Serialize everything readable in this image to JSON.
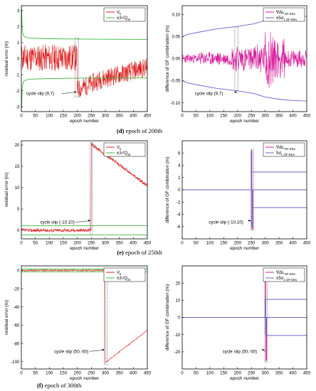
{
  "captions": [
    {
      "letter": "(d)",
      "text": "epoch of 200th"
    },
    {
      "letter": "(e)",
      "text": "epoch of 250th"
    },
    {
      "letter": "(f)",
      "text": "epoch of 300th"
    }
  ],
  "colors": {
    "red": "#dd1f1f",
    "green": "#3cb83c",
    "magenta": "#d81b9b",
    "blue": "#6c63c9",
    "dash": "#555555"
  },
  "chart_data": [
    {
      "id": "d-left",
      "type": "line",
      "xlabel": "epoch number",
      "ylabel": "residual error (m)",
      "xlim": [
        0,
        450
      ],
      "ylim": [
        -3.3,
        3.3
      ],
      "xticks": [
        "0",
        "50",
        "100",
        "150",
        "200",
        "250",
        "300",
        "350",
        "400",
        "450"
      ],
      "yticks": [
        "3",
        "2",
        "1",
        "0",
        "-1",
        "-2",
        "-3"
      ],
      "ytick_values": [
        3,
        2,
        1,
        0,
        -1,
        -2,
        -3
      ],
      "legend": [
        {
          "label": "V_k",
          "color": "red"
        },
        {
          "label": "±3√Q_vk",
          "color": "green"
        }
      ],
      "annotation": "cycle slip (9,7)",
      "slip_epoch": 200,
      "series": [
        {
          "color": "red",
          "kind": "noisy",
          "generator": "d_left_residual"
        },
        {
          "color": "green",
          "kind": "curve",
          "points": [
            [
              1,
              3.1
            ],
            [
              3,
              1.8
            ],
            [
              6,
              1.5
            ],
            [
              12,
              1.35
            ],
            [
              30,
              1.28
            ],
            [
              100,
              1.24
            ],
            [
              200,
              1.22
            ],
            [
              300,
              1.21
            ],
            [
              450,
              1.2
            ]
          ]
        },
        {
          "color": "green",
          "kind": "curve",
          "points": [
            [
              1,
              -3.1
            ],
            [
              3,
              -1.8
            ],
            [
              6,
              -1.5
            ],
            [
              12,
              -1.35
            ],
            [
              30,
              -1.28
            ],
            [
              100,
              -1.24
            ],
            [
              200,
              -1.22
            ],
            [
              300,
              -1.21
            ],
            [
              450,
              -1.2
            ]
          ]
        }
      ],
      "highlight": {
        "x0": 192,
        "x1": 205,
        "y0": -2.4,
        "y1": 1.3
      }
    },
    {
      "id": "d-right",
      "type": "line",
      "xlabel": "epoch number",
      "ylabel": "difference of GF combination (m)",
      "xlim": [
        0,
        450
      ],
      "ylim": [
        -0.12,
        0.12
      ],
      "xticks": [
        "0",
        "50",
        "100",
        "150",
        "200",
        "250",
        "300",
        "350",
        "400",
        "450"
      ],
      "yticks": [
        "0.10",
        "0.05",
        "0.00",
        "-0.05",
        "-0.10"
      ],
      "ytick_values": [
        0.1,
        0.05,
        0,
        -0.05,
        -0.1
      ],
      "legend": [
        {
          "label": "∇ΔL_GF-Elev",
          "color": "magenta"
        },
        {
          "label": "±5σ_L_GF-Elev",
          "color": "blue"
        }
      ],
      "annotation": "cycle slip (9,7)",
      "slip_epoch": 200,
      "series": [
        {
          "color": "magenta",
          "kind": "noisy",
          "generator": "d_right_gf"
        },
        {
          "color": "blue",
          "kind": "curve",
          "points": [
            [
              1,
              0.05
            ],
            [
              20,
              0.055
            ],
            [
              60,
              0.06
            ],
            [
              120,
              0.067
            ],
            [
              200,
              0.073
            ],
            [
              260,
              0.079
            ],
            [
              300,
              0.087
            ],
            [
              350,
              0.092
            ],
            [
              400,
              0.095
            ],
            [
              450,
              0.096
            ]
          ]
        },
        {
          "color": "blue",
          "kind": "curve",
          "points": [
            [
              1,
              -0.05
            ],
            [
              20,
              -0.055
            ],
            [
              60,
              -0.06
            ],
            [
              120,
              -0.067
            ],
            [
              200,
              -0.073
            ],
            [
              260,
              -0.079
            ],
            [
              300,
              -0.087
            ],
            [
              350,
              -0.092
            ],
            [
              400,
              -0.095
            ],
            [
              450,
              -0.096
            ]
          ]
        }
      ],
      "highlight": {
        "x0": 190,
        "x1": 202,
        "y0": -0.072,
        "y1": 0.072
      }
    },
    {
      "id": "e-left",
      "type": "line",
      "xlabel": "epoch number",
      "ylabel": "residual error (m)",
      "xlim": [
        0,
        450
      ],
      "ylim": [
        -2,
        21
      ],
      "xticks": [
        "0",
        "50",
        "100",
        "150",
        "200",
        "250",
        "300",
        "350",
        "400",
        "450"
      ],
      "yticks": [
        "20",
        "15",
        "10",
        "5",
        "0"
      ],
      "ytick_values": [
        20,
        15,
        10,
        5,
        0
      ],
      "legend": [
        {
          "label": "V_k",
          "color": "red"
        },
        {
          "label": "±3√Q_vk",
          "color": "green"
        }
      ],
      "annotation": "cycle slip (-10,10)",
      "slip_epoch": 250,
      "series": [
        {
          "color": "red",
          "kind": "noisy",
          "generator": "e_left_residual"
        },
        {
          "color": "green",
          "kind": "curve",
          "points": [
            [
              1,
              1.1
            ],
            [
              450,
              1.1
            ]
          ]
        },
        {
          "color": "green",
          "kind": "curve",
          "points": [
            [
              1,
              -1.1
            ],
            [
              450,
              -1.1
            ]
          ]
        }
      ],
      "highlight": {
        "x0": 246,
        "x1": 254,
        "y0": -1.0,
        "y1": 20.6
      }
    },
    {
      "id": "e-right",
      "type": "line",
      "xlabel": "epoch number",
      "ylabel": "difference of GF combination (m)",
      "xlim": [
        0,
        450
      ],
      "ylim": [
        -8,
        8
      ],
      "xticks": [
        "0",
        "50",
        "100",
        "150",
        "200",
        "250",
        "300",
        "350",
        "400",
        "450"
      ],
      "yticks": [
        "6",
        "4",
        "2",
        "0",
        "-2",
        "-4",
        "-6"
      ],
      "ytick_values": [
        6,
        4,
        2,
        0,
        -2,
        -4,
        -6
      ],
      "legend": [
        {
          "label": "∇ΔL_GF-Elev",
          "color": "magenta"
        },
        {
          "label": "5σ_L_GF-Elev",
          "color": "blue"
        }
      ],
      "annotation": "cycle slip (-10,10)",
      "slip_epoch": 250,
      "series": [
        {
          "color": "magenta",
          "kind": "spike",
          "x0": 251,
          "x1": 255,
          "peak": 6.4,
          "trough": -6.4
        },
        {
          "color": "blue",
          "kind": "spike",
          "x0": 250,
          "x1": 254,
          "peak": 6.2,
          "trough": -6.0
        },
        {
          "color": "blue",
          "kind": "curve",
          "points": [
            [
              254,
              2.9
            ],
            [
              450,
              2.9
            ]
          ]
        },
        {
          "color": "blue",
          "kind": "curve",
          "points": [
            [
              254,
              -2.9
            ],
            [
              450,
              -2.9
            ]
          ]
        }
      ],
      "highlight": {
        "x0": 248,
        "x1": 258,
        "y0": -6.6,
        "y1": 6.6
      }
    },
    {
      "id": "f-left",
      "type": "line",
      "xlabel": "epoch number",
      "ylabel": "residual error (m)",
      "xlim": [
        0,
        450
      ],
      "ylim": [
        -108,
        5
      ],
      "xticks": [
        "0",
        "50",
        "100",
        "150",
        "200",
        "250",
        "300",
        "350",
        "400",
        "450"
      ],
      "yticks": [
        "0",
        "-20",
        "-40",
        "-60",
        "-80",
        "-100"
      ],
      "ytick_values": [
        0,
        -20,
        -40,
        -60,
        -80,
        -100
      ],
      "legend": [
        {
          "label": "V_k",
          "color": "red"
        },
        {
          "label": "±3√Q_vk",
          "color": "green"
        }
      ],
      "annotation": "cycle slip (50,-50)",
      "slip_epoch": 300,
      "series": [
        {
          "color": "red",
          "kind": "noisy",
          "generator": "f_left_residual"
        },
        {
          "color": "green",
          "kind": "curve",
          "points": [
            [
              1,
              1.5
            ],
            [
              450,
              1.5
            ]
          ]
        },
        {
          "color": "green",
          "kind": "curve",
          "points": [
            [
              1,
              -1.5
            ],
            [
              450,
              -1.5
            ]
          ]
        }
      ],
      "highlight": {
        "x0": 296,
        "x1": 306,
        "y0": -103,
        "y1": 1.5
      }
    },
    {
      "id": "f-right",
      "type": "line",
      "xlabel": "epoch number",
      "ylabel": "difference of GF combination (m)",
      "xlim": [
        0,
        450
      ],
      "ylim": [
        -30,
        30
      ],
      "xticks": [
        "0",
        "50",
        "100",
        "150",
        "200",
        "250",
        "300",
        "350",
        "400",
        "450"
      ],
      "yticks": [
        "20",
        "10",
        "0",
        "-10",
        "-20"
      ],
      "ytick_values": [
        20,
        10,
        0,
        -10,
        -20
      ],
      "legend": [
        {
          "label": "∇ΔL_GF-Elev",
          "color": "magenta"
        },
        {
          "label": "±5σ_L_GF-Elev",
          "color": "blue"
        }
      ],
      "annotation": "cycle slip (50,-50)",
      "slip_epoch": 300,
      "series": [
        {
          "color": "magenta",
          "kind": "spike",
          "x0": 301,
          "x1": 305,
          "peak": 25,
          "trough": -25
        },
        {
          "color": "blue",
          "kind": "spike",
          "x0": 300,
          "x1": 304,
          "peak": 11,
          "trough": -10
        },
        {
          "color": "blue",
          "kind": "curve",
          "points": [
            [
              304,
              10.5
            ],
            [
              450,
              10.5
            ]
          ]
        },
        {
          "color": "blue",
          "kind": "curve",
          "points": [
            [
              304,
              -10.5
            ],
            [
              450,
              -10.5
            ]
          ]
        }
      ],
      "highlight": {
        "x0": 298,
        "x1": 308,
        "y0": -26,
        "y1": 26
      }
    }
  ]
}
